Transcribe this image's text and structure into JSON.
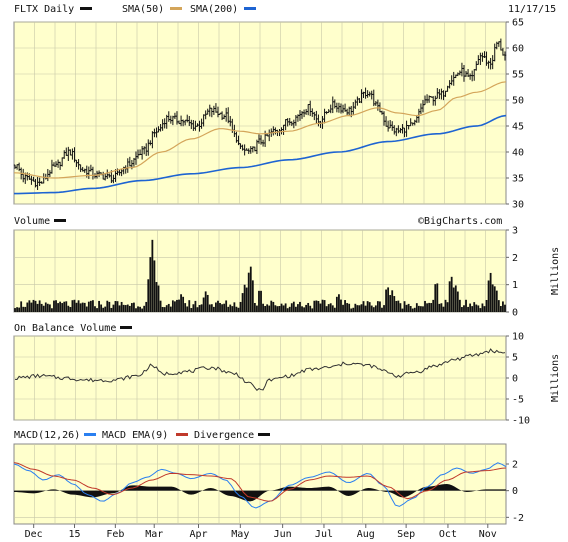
{
  "header": {
    "symbol_label": "FLTX Daily",
    "sma50_label": "SMA(50)",
    "sma200_label": "SMA(200)",
    "date": "11/17/15",
    "watermark": "©BigCharts.com"
  },
  "colors": {
    "plot_bg": "#ffffcc",
    "price": "#111111",
    "sma50": "#d4a55a",
    "sma200": "#1e64d2",
    "volume": "#111111",
    "obv": "#333333",
    "macd": "#2a7ff0",
    "macd_ema": "#c0392b",
    "divergence": "#111111"
  },
  "panels": {
    "volume_title": "Volume",
    "volume_unit": "Millions",
    "obv_title": "On Balance Volume",
    "obv_unit": "Millions",
    "macd_title": "MACD(12,26)",
    "macd_ema_title": "MACD EMA(9)",
    "divergence_title": "Divergence"
  },
  "chart_data": [
    {
      "type": "candlestick",
      "panel": "price",
      "title": "FLTX Daily",
      "yticks": [
        30,
        35,
        40,
        45,
        50,
        55,
        60,
        65
      ],
      "ylim": [
        30,
        65
      ],
      "grid": true,
      "x_labels": [
        "Dec",
        "15",
        "Feb",
        "Mar",
        "Apr",
        "May",
        "Jun",
        "Jul",
        "Aug",
        "Sep",
        "Oct",
        "Nov"
      ],
      "x_label_positions": [
        0.04,
        0.123,
        0.206,
        0.285,
        0.375,
        0.46,
        0.546,
        0.63,
        0.715,
        0.797,
        0.882,
        0.963
      ],
      "close_anchors": [
        [
          0.0,
          37.5
        ],
        [
          0.02,
          35.0
        ],
        [
          0.05,
          34.0
        ],
        [
          0.08,
          37.0
        ],
        [
          0.11,
          40.0
        ],
        [
          0.14,
          36.5
        ],
        [
          0.17,
          35.5
        ],
        [
          0.2,
          35.0
        ],
        [
          0.23,
          37.5
        ],
        [
          0.26,
          40.0
        ],
        [
          0.29,
          44.0
        ],
        [
          0.31,
          46.5
        ],
        [
          0.34,
          46.0
        ],
        [
          0.37,
          45.0
        ],
        [
          0.4,
          48.0
        ],
        [
          0.43,
          47.0
        ],
        [
          0.45,
          43.0
        ],
        [
          0.46,
          40.5
        ],
        [
          0.48,
          40.0
        ],
        [
          0.5,
          42.0
        ],
        [
          0.53,
          44.0
        ],
        [
          0.56,
          46.0
        ],
        [
          0.6,
          48.5
        ],
        [
          0.62,
          46.0
        ],
        [
          0.65,
          49.0
        ],
        [
          0.68,
          48.0
        ],
        [
          0.72,
          51.5
        ],
        [
          0.745,
          48.0
        ],
        [
          0.76,
          45.0
        ],
        [
          0.78,
          44.0
        ],
        [
          0.81,
          45.0
        ],
        [
          0.84,
          50.0
        ],
        [
          0.87,
          51.0
        ],
        [
          0.89,
          54.0
        ],
        [
          0.91,
          55.5
        ],
        [
          0.93,
          54.0
        ],
        [
          0.95,
          58.5
        ],
        [
          0.97,
          57.0
        ],
        [
          0.985,
          61.0
        ],
        [
          1.0,
          58.5
        ]
      ],
      "sma50_anchors": [
        [
          0.0,
          36.0
        ],
        [
          0.08,
          35.0
        ],
        [
          0.16,
          35.5
        ],
        [
          0.24,
          37.0
        ],
        [
          0.3,
          40.0
        ],
        [
          0.36,
          42.5
        ],
        [
          0.42,
          44.5
        ],
        [
          0.46,
          44.0
        ],
        [
          0.5,
          43.5
        ],
        [
          0.56,
          44.0
        ],
        [
          0.62,
          45.5
        ],
        [
          0.68,
          47.0
        ],
        [
          0.74,
          48.5
        ],
        [
          0.78,
          47.5
        ],
        [
          0.82,
          47.0
        ],
        [
          0.86,
          48.0
        ],
        [
          0.9,
          50.5
        ],
        [
          0.94,
          51.5
        ],
        [
          1.0,
          53.5
        ]
      ],
      "sma200_anchors": [
        [
          0.0,
          32.0
        ],
        [
          0.08,
          32.2
        ],
        [
          0.16,
          33.0
        ],
        [
          0.26,
          34.5
        ],
        [
          0.36,
          35.8
        ],
        [
          0.46,
          37.0
        ],
        [
          0.56,
          38.5
        ],
        [
          0.66,
          40.0
        ],
        [
          0.76,
          42.0
        ],
        [
          0.86,
          43.5
        ],
        [
          0.94,
          45.0
        ],
        [
          1.0,
          47.0
        ]
      ]
    },
    {
      "type": "bar",
      "panel": "volume",
      "title": "Volume",
      "ylabel": "Millions",
      "yticks": [
        0,
        1,
        2,
        3
      ],
      "ylim": [
        0,
        3
      ],
      "base_level": 0.25,
      "spikes": [
        [
          0.28,
          2.7
        ],
        [
          0.275,
          1.5
        ],
        [
          0.29,
          1.2
        ],
        [
          0.48,
          1.8
        ],
        [
          0.47,
          1.1
        ],
        [
          0.34,
          0.7
        ],
        [
          0.39,
          0.8
        ],
        [
          0.5,
          0.9
        ],
        [
          0.66,
          0.7
        ],
        [
          0.76,
          1.0
        ],
        [
          0.77,
          0.8
        ],
        [
          0.86,
          1.2
        ],
        [
          0.89,
          1.4
        ],
        [
          0.9,
          1.0
        ],
        [
          0.97,
          1.5
        ],
        [
          0.98,
          1.0
        ]
      ]
    },
    {
      "type": "line",
      "panel": "obv",
      "title": "On Balance Volume",
      "ylabel": "Millions",
      "yticks": [
        -10,
        -5,
        0,
        5,
        10
      ],
      "ylim": [
        -10,
        10
      ],
      "anchors": [
        [
          0.0,
          0.0
        ],
        [
          0.05,
          0.5
        ],
        [
          0.1,
          0.0
        ],
        [
          0.15,
          -0.5
        ],
        [
          0.2,
          -0.5
        ],
        [
          0.25,
          0.5
        ],
        [
          0.28,
          3.0
        ],
        [
          0.3,
          1.0
        ],
        [
          0.35,
          1.5
        ],
        [
          0.4,
          2.5
        ],
        [
          0.45,
          1.0
        ],
        [
          0.48,
          -1.5
        ],
        [
          0.5,
          -3.0
        ],
        [
          0.52,
          -0.5
        ],
        [
          0.56,
          0.5
        ],
        [
          0.6,
          2.0
        ],
        [
          0.64,
          2.5
        ],
        [
          0.68,
          3.5
        ],
        [
          0.72,
          3.0
        ],
        [
          0.76,
          1.5
        ],
        [
          0.78,
          0.5
        ],
        [
          0.82,
          1.5
        ],
        [
          0.86,
          3.0
        ],
        [
          0.9,
          4.5
        ],
        [
          0.94,
          5.5
        ],
        [
          0.97,
          6.5
        ],
        [
          1.0,
          6.0
        ]
      ]
    },
    {
      "type": "line",
      "panel": "macd",
      "title": "MACD(12,26)",
      "yticks": [
        -2,
        0,
        2
      ],
      "ylim": [
        -2.5,
        3.5
      ],
      "series": [
        {
          "name": "MACD(12,26)",
          "anchors": [
            [
              0.0,
              2.0
            ],
            [
              0.03,
              1.5
            ],
            [
              0.06,
              0.8
            ],
            [
              0.09,
              1.2
            ],
            [
              0.12,
              0.5
            ],
            [
              0.15,
              -0.3
            ],
            [
              0.18,
              -0.8
            ],
            [
              0.21,
              -0.2
            ],
            [
              0.24,
              0.6
            ],
            [
              0.27,
              1.0
            ],
            [
              0.3,
              1.6
            ],
            [
              0.33,
              1.3
            ],
            [
              0.36,
              0.9
            ],
            [
              0.4,
              1.3
            ],
            [
              0.43,
              0.8
            ],
            [
              0.46,
              -0.4
            ],
            [
              0.49,
              -1.3
            ],
            [
              0.52,
              -0.8
            ],
            [
              0.56,
              0.4
            ],
            [
              0.6,
              1.0
            ],
            [
              0.64,
              1.4
            ],
            [
              0.68,
              0.6
            ],
            [
              0.72,
              1.3
            ],
            [
              0.75,
              0.4
            ],
            [
              0.78,
              -1.2
            ],
            [
              0.81,
              -0.6
            ],
            [
              0.84,
              0.3
            ],
            [
              0.87,
              1.2
            ],
            [
              0.9,
              1.7
            ],
            [
              0.93,
              1.3
            ],
            [
              0.96,
              1.6
            ],
            [
              0.985,
              2.1
            ],
            [
              1.0,
              1.8
            ]
          ]
        },
        {
          "name": "MACD EMA(9)",
          "anchors": [
            [
              0.0,
              2.1
            ],
            [
              0.04,
              1.6
            ],
            [
              0.08,
              1.1
            ],
            [
              0.12,
              0.8
            ],
            [
              0.16,
              0.2
            ],
            [
              0.2,
              -0.3
            ],
            [
              0.24,
              0.2
            ],
            [
              0.28,
              0.8
            ],
            [
              0.32,
              1.3
            ],
            [
              0.36,
              1.2
            ],
            [
              0.4,
              1.1
            ],
            [
              0.44,
              0.9
            ],
            [
              0.48,
              -0.5
            ],
            [
              0.52,
              -0.8
            ],
            [
              0.56,
              0.1
            ],
            [
              0.6,
              0.8
            ],
            [
              0.64,
              1.1
            ],
            [
              0.68,
              1.0
            ],
            [
              0.72,
              1.1
            ],
            [
              0.76,
              0.3
            ],
            [
              0.8,
              -0.6
            ],
            [
              0.84,
              0.0
            ],
            [
              0.88,
              0.8
            ],
            [
              0.92,
              1.4
            ],
            [
              0.96,
              1.5
            ],
            [
              1.0,
              1.7
            ]
          ]
        }
      ],
      "divergence_anchors": [
        [
          0.0,
          -0.1
        ],
        [
          0.04,
          -0.2
        ],
        [
          0.08,
          0.1
        ],
        [
          0.12,
          -0.3
        ],
        [
          0.16,
          -0.5
        ],
        [
          0.2,
          -0.2
        ],
        [
          0.24,
          0.4
        ],
        [
          0.28,
          0.3
        ],
        [
          0.32,
          0.3
        ],
        [
          0.36,
          -0.3
        ],
        [
          0.4,
          0.2
        ],
        [
          0.44,
          -0.4
        ],
        [
          0.48,
          -0.8
        ],
        [
          0.52,
          0.0
        ],
        [
          0.56,
          0.3
        ],
        [
          0.6,
          0.2
        ],
        [
          0.64,
          0.3
        ],
        [
          0.68,
          -0.4
        ],
        [
          0.72,
          0.2
        ],
        [
          0.76,
          -0.1
        ],
        [
          0.79,
          -0.5
        ],
        [
          0.84,
          0.3
        ],
        [
          0.88,
          0.5
        ],
        [
          0.92,
          -0.1
        ],
        [
          0.96,
          0.1
        ],
        [
          1.0,
          0.1
        ]
      ]
    }
  ]
}
